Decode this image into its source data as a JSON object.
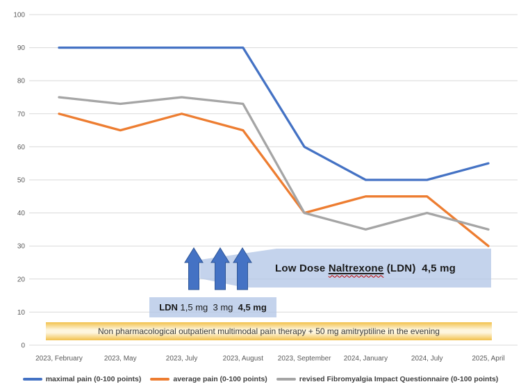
{
  "chart_data": {
    "type": "line",
    "title": "",
    "categories": [
      "2023, February",
      "2023, May",
      "2023, July",
      "2023, August",
      "2023, September",
      "2024, January",
      "2024, July",
      "2025, April"
    ],
    "series": [
      {
        "name": "maximal pain (0-100 points)",
        "color": "#4472C4",
        "values": [
          90,
          90,
          90,
          90,
          60,
          50,
          50,
          55
        ]
      },
      {
        "name": "average pain (0-100 points)",
        "color": "#ED7D31",
        "values": [
          70,
          65,
          70,
          65,
          40,
          45,
          45,
          30
        ]
      },
      {
        "name": "revised Fibromyalgia Impact Questionnaire (0-100 points)",
        "color": "#A5A5A5",
        "values": [
          75,
          73,
          75,
          73,
          40,
          35,
          40,
          35
        ]
      }
    ],
    "ylim": [
      0,
      100
    ],
    "ytick_step": 10,
    "grid": true,
    "gridline_color": "#D9D9D9",
    "legend_position": "bottom"
  },
  "annotations": {
    "ldn_banner": {
      "pre": "Low Dose ",
      "underlined": "Naltrexone",
      "post": " (LDN)  4,5 mg"
    },
    "ldn_doses": {
      "drug": "LDN",
      "mid": " 1,5 mg  3 mg  ",
      "final": "4,5 mg"
    },
    "therapy_banner": "Non pharmacological outpatient multimodal pain therapy + 50 mg amitryptiline in the evening",
    "dose_arrow_fill": "#4472C4",
    "dose_arrow_border": "#2E5596",
    "banner_fill": "rgba(180,199,231,0.78)",
    "therapy_fill_edge": "#F2C14C",
    "therapy_fill_center": "#FEF6DE"
  }
}
